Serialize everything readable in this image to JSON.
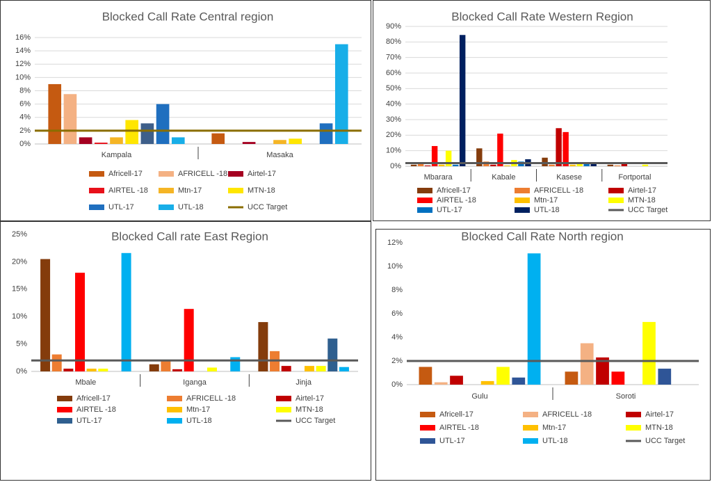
{
  "chart_data": [
    {
      "type": "bar",
      "title": "Blocked Call Rate Central region",
      "categories": [
        "Kampala",
        "Masaka"
      ],
      "series": [
        {
          "name": "Africell-17",
          "color": "#c55a11",
          "values": [
            9,
            1.6
          ]
        },
        {
          "name": "AFRICELL -18",
          "color": "#f4b183",
          "values": [
            7.5,
            0
          ]
        },
        {
          "name": "Airtel-17",
          "color": "#a50021",
          "values": [
            1,
            0.3
          ]
        },
        {
          "name": "AIRTEL -18",
          "color": "#e8101a",
          "values": [
            0.2,
            0
          ]
        },
        {
          "name": "Mtn-17",
          "color": "#f5b525",
          "values": [
            1,
            0.6
          ]
        },
        {
          "name": "MTN-18",
          "color": "#ffe600",
          "values": [
            3.6,
            0.8
          ]
        },
        {
          "color": "#3e5f8a",
          "values": [
            3.1,
            0
          ]
        },
        {
          "name": "UTL-17",
          "color": "#1f6fbf",
          "values": [
            6,
            3.1
          ]
        },
        {
          "name": "UTL-18",
          "color": "#18aee8",
          "values": [
            1,
            15
          ]
        }
      ],
      "target": {
        "name": "UCC Target",
        "value": 2,
        "color": "#8a6d00"
      },
      "ylim": [
        0,
        16
      ],
      "yticks": [
        {
          "value": 0,
          "label": "0%"
        },
        {
          "value": 2,
          "label": "2%"
        },
        {
          "value": 4,
          "label": "4%"
        },
        {
          "value": 6,
          "label": "6%"
        },
        {
          "value": 8,
          "label": "8%"
        },
        {
          "value": 10,
          "label": "10%"
        },
        {
          "value": 12,
          "label": "12%"
        },
        {
          "value": 14,
          "label": "14%"
        },
        {
          "value": 16,
          "label": "16%"
        }
      ],
      "grid": true
    },
    {
      "type": "bar",
      "title": "Blocked Call Rate Western Region",
      "categories": [
        "Mbarara",
        "Kabale",
        "Kasese",
        "Fortportal"
      ],
      "series": [
        {
          "name": "Africell-17",
          "color": "#843c0c",
          "values": [
            1,
            11.5,
            5.5,
            1
          ]
        },
        {
          "name": "AFRICELL -18",
          "color": "#ed7d31",
          "values": [
            1.5,
            3,
            1,
            0.5
          ]
        },
        {
          "name": "Airtel-17",
          "color": "#c00000",
          "values": [
            0.5,
            1,
            24.5,
            1.5
          ]
        },
        {
          "name": "AIRTEL -18",
          "color": "#ff0000",
          "values": [
            13,
            21,
            22,
            0
          ]
        },
        {
          "name": "Mtn-17",
          "color": "#ffc000",
          "values": [
            1,
            0.5,
            1,
            0
          ]
        },
        {
          "name": "MTN-18",
          "color": "#ffff00",
          "values": [
            10,
            4,
            1.5,
            1
          ]
        },
        {
          "name": "UTL-17",
          "color": "#0070c0",
          "values": [
            1,
            3,
            2,
            0
          ]
        },
        {
          "name": "UTL-18",
          "color": "#002060",
          "values": [
            84.5,
            4.5,
            2,
            0
          ]
        }
      ],
      "target": {
        "name": "UCC Target",
        "value": 2,
        "color": "#595959"
      },
      "ylim": [
        0,
        90
      ],
      "yticks": [
        {
          "value": 0,
          "label": "0%"
        },
        {
          "value": 10,
          "label": "10%"
        },
        {
          "value": 20,
          "label": "20%"
        },
        {
          "value": 30,
          "label": "30%"
        },
        {
          "value": 40,
          "label": "40%"
        },
        {
          "value": 50,
          "label": "50%"
        },
        {
          "value": 60,
          "label": "60%"
        },
        {
          "value": 70,
          "label": "70%"
        },
        {
          "value": 80,
          "label": "80%"
        },
        {
          "value": 90,
          "label": "90%"
        }
      ],
      "grid": true
    },
    {
      "type": "bar",
      "title": "Blocked Call rate East Region",
      "categories": [
        "Mbale",
        "Iganga",
        "Jinja"
      ],
      "series": [
        {
          "name": "Africell-17",
          "color": "#843c0c",
          "values": [
            20.5,
            1.3,
            9
          ]
        },
        {
          "name": "AFRICELL -18",
          "color": "#ed7d31",
          "values": [
            3.1,
            2,
            3.7
          ]
        },
        {
          "name": "Airtel-17",
          "color": "#c00000",
          "values": [
            0.5,
            0.4,
            1
          ]
        },
        {
          "name": "AIRTEL -18",
          "color": "#ff0000",
          "values": [
            18,
            11.4,
            0
          ]
        },
        {
          "name": "Mtn-17",
          "color": "#ffc000",
          "values": [
            0.5,
            0,
            1
          ]
        },
        {
          "name": "MTN-18",
          "color": "#ffff00",
          "values": [
            0.5,
            0.7,
            1
          ]
        },
        {
          "name": "UTL-17",
          "color": "#2f5f8f",
          "values": [
            0,
            0,
            6
          ]
        },
        {
          "name": "UTL-18",
          "color": "#00b0f0",
          "values": [
            21.6,
            2.6,
            0.8
          ]
        }
      ],
      "target": {
        "name": "UCC Target",
        "value": 2,
        "color": "#595959"
      },
      "ylim": [
        0,
        25
      ],
      "yticks": [
        {
          "value": 0,
          "label": "0%"
        },
        {
          "value": 5,
          "label": "5%"
        },
        {
          "value": 10,
          "label": "10%"
        },
        {
          "value": 15,
          "label": "15%"
        },
        {
          "value": 20,
          "label": "20%"
        },
        {
          "value": 25,
          "label": "25%"
        }
      ],
      "grid": false
    },
    {
      "type": "bar",
      "title": "Blocked Call Rate North region",
      "categories": [
        "Gulu",
        "Soroti"
      ],
      "series": [
        {
          "name": "Africell-17",
          "color": "#c55a11",
          "values": [
            1.5,
            1.1
          ]
        },
        {
          "name": "AFRICELL -18",
          "color": "#f4b183",
          "values": [
            0.2,
            3.5
          ]
        },
        {
          "name": "Airtel-17",
          "color": "#c00000",
          "values": [
            0.75,
            2.3
          ]
        },
        {
          "name": "AIRTEL -18",
          "color": "#ff0000",
          "values": [
            0,
            1.1
          ]
        },
        {
          "name": "Mtn-17",
          "color": "#ffc000",
          "values": [
            0.3,
            0
          ]
        },
        {
          "name": "MTN-18",
          "color": "#ffff00",
          "values": [
            1.5,
            5.3
          ]
        },
        {
          "name": "UTL-17",
          "color": "#2f5597",
          "values": [
            0.6,
            1.35
          ]
        },
        {
          "name": "UTL-18",
          "color": "#00b0f0",
          "values": [
            11.1,
            0
          ]
        }
      ],
      "target": {
        "name": "UCC Target",
        "value": 2,
        "color": "#595959"
      },
      "ylim": [
        0,
        12
      ],
      "yticks": [
        {
          "value": 0,
          "label": "0%"
        },
        {
          "value": 2,
          "label": "2%"
        },
        {
          "value": 4,
          "label": "4%"
        },
        {
          "value": 6,
          "label": "6%"
        },
        {
          "value": 8,
          "label": "8%"
        },
        {
          "value": 10,
          "label": "10%"
        },
        {
          "value": 12,
          "label": "12%"
        }
      ],
      "grid": false
    }
  ]
}
